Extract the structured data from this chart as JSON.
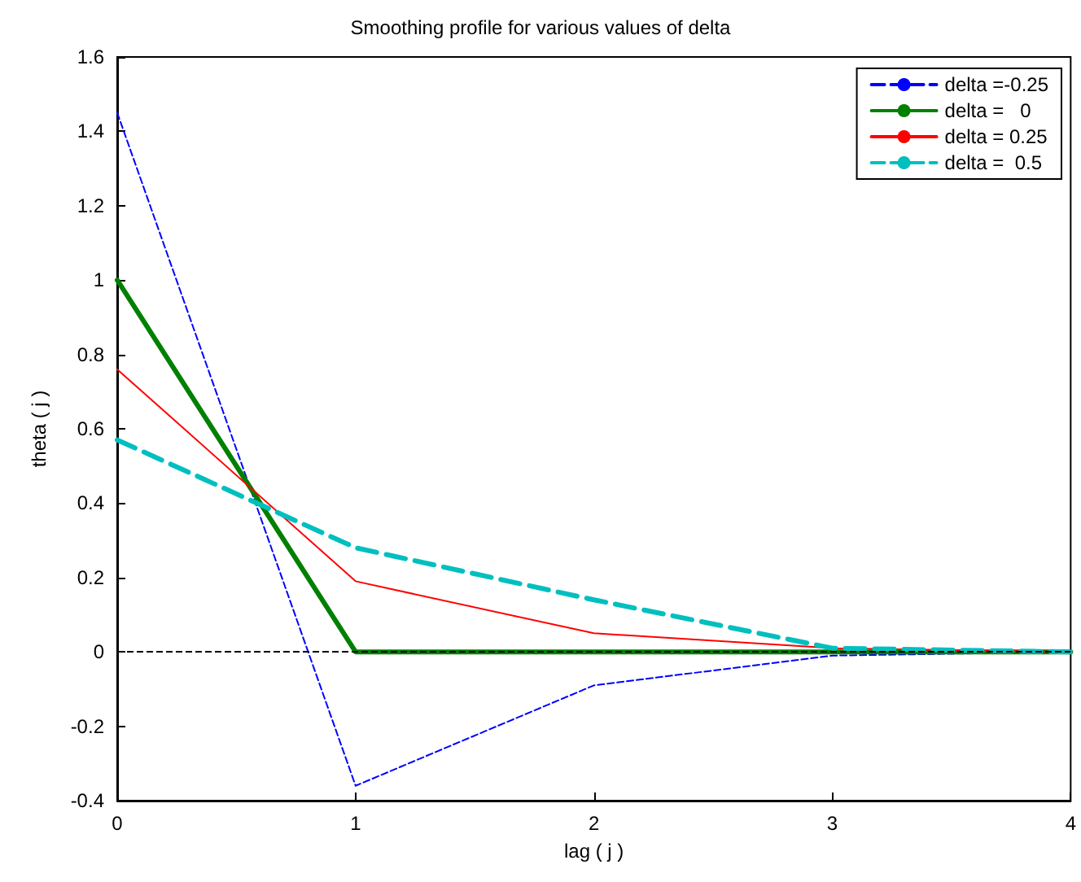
{
  "chart_data": {
    "type": "line",
    "title": "Smoothing profile for various values of delta",
    "xlabel": "lag ( j )",
    "ylabel": "theta ( j )",
    "x": [
      0,
      1,
      2,
      3,
      4
    ],
    "series": [
      {
        "name": "delta =-0.25",
        "color": "#0000ff",
        "line_style": "dashed",
        "values": [
          1.45,
          -0.36,
          -0.09,
          -0.01,
          0
        ]
      },
      {
        "name": "delta =   0",
        "color": "#008000",
        "line_style": "solid",
        "values": [
          1,
          0,
          0,
          0,
          0
        ]
      },
      {
        "name": "delta = 0.25",
        "color": "#ff0000",
        "line_style": "solid",
        "values": [
          0.76,
          0.19,
          0.05,
          0.01,
          0
        ]
      },
      {
        "name": "delta =  0.5",
        "color": "#00bfbf",
        "line_style": "dashed",
        "values": [
          0.57,
          0.28,
          0.14,
          0.01,
          0
        ]
      }
    ],
    "xlim": [
      0,
      4
    ],
    "xticks": [
      0,
      1,
      2,
      3,
      4
    ],
    "ylim": [
      -0.4,
      1.6
    ],
    "yticks": [
      -0.4,
      -0.2,
      0,
      0.2,
      0.4,
      0.6,
      0.8,
      1,
      1.2,
      1.4,
      1.6
    ],
    "ref_lines": [
      {
        "axis": "y",
        "value": 0,
        "color": "#000000",
        "line_style": "dashed"
      }
    ],
    "legend": "top right",
    "marker": "none",
    "grid": false
  }
}
